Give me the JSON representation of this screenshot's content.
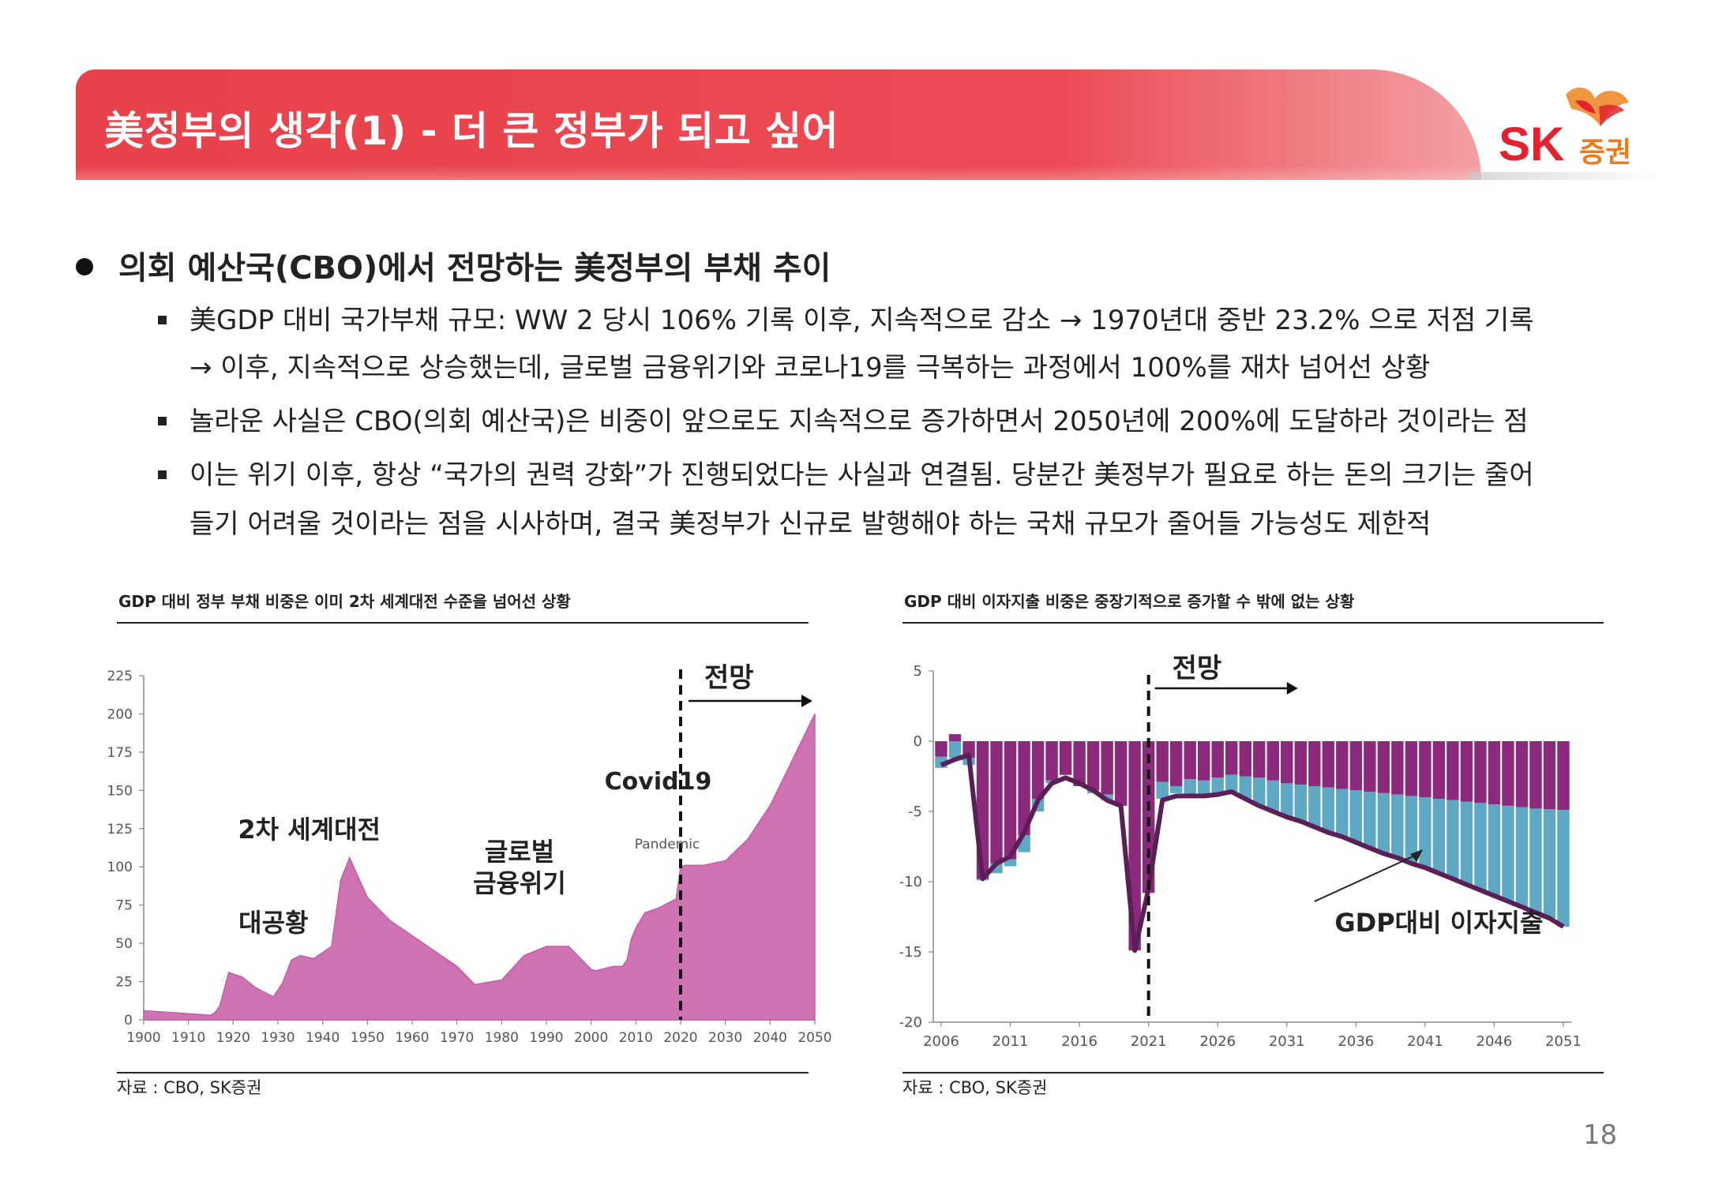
{
  "header": {
    "title": "美정부의 생각(1) - 더 큰 정부가 되고 싶어",
    "logo_main": "SK",
    "logo_sub": "증권",
    "bar_color": "#e8414b"
  },
  "bullet": {
    "heading": "의회 예산국(CBO)에서 전망하는 美정부의 부채 추이",
    "items": [
      "美GDP 대비 국가부채 규모: WW 2 당시 106% 기록 이후, 지속적으로 감소 → 1970년대 중반 23.2% 으로 저점 기록",
      "→ 이후, 지속적으로 상승했는데, 글로벌 금융위기와 코로나19를 극복하는 과정에서 100%를 재차 넘어선 상황",
      "놀라운 사실은 CBO(의회 예산국)은 비중이 앞으로도 지속적으로 증가하면서 2050년에 200%에 도달하라 것이라는 점",
      "이는 위기 이후, 항상 “국가의 권력 강화”가 진행되었다는 사실과 연결됨. 당분간 美정부가 필요로 하는 돈의 크기는 줄어",
      "들기 어려울 것이라는 점을 시사하며, 결국 美정부가 신규로 발행해야 하는 국채 규모가 줄어들 가능성도 제한적"
    ]
  },
  "chart_data": [
    {
      "type": "area",
      "title": "GDP 대비 정부 부채 비중은 이미 2차 세계대전 수준을 넘어선 상황",
      "source": "자료 : CBO, SK증권",
      "color": "#cf72b2",
      "xlim": [
        1900,
        2050
      ],
      "ylim": [
        0,
        225
      ],
      "x_ticks": [
        "1900",
        "1910",
        "1920",
        "1930",
        "1940",
        "1950",
        "1960",
        "1970",
        "1980",
        "1990",
        "2000",
        "2010",
        "2020",
        "2030",
        "2040",
        "2050"
      ],
      "y_ticks": [
        "225",
        "200",
        "175",
        "150",
        "125",
        "100",
        "75",
        "50",
        "25",
        "0"
      ],
      "forecast_line_x": 2020,
      "annotations": {
        "forecast": "전망",
        "covid": "Covid19",
        "pandemic": "Pandemic",
        "ww2": "2차 세계대전",
        "gfc_line1": "글로벌",
        "gfc_line2": "금융위기",
        "depression": "대공황"
      },
      "x": [
        1900,
        1905,
        1910,
        1915,
        1916,
        1917,
        1918,
        1919,
        1920,
        1922,
        1925,
        1929,
        1931,
        1933,
        1935,
        1938,
        1940,
        1942,
        1944,
        1946,
        1948,
        1950,
        1955,
        1960,
        1965,
        1970,
        1974,
        1980,
        1985,
        1990,
        1995,
        2000,
        2001,
        2005,
        2007,
        2008,
        2009,
        2010,
        2012,
        2015,
        2019,
        2020,
        2021,
        2025,
        2030,
        2035,
        2040,
        2045,
        2050
      ],
      "values": [
        6,
        5,
        4,
        3,
        5,
        9,
        20,
        31,
        30,
        28,
        21,
        15,
        24,
        39,
        42,
        40,
        44,
        48,
        91,
        106,
        93,
        80,
        65,
        55,
        45,
        35,
        23,
        26,
        42,
        48,
        48,
        33,
        32,
        35,
        35,
        39,
        53,
        60,
        70,
        73,
        79,
        100,
        101,
        101,
        104,
        118,
        140,
        170,
        200
      ]
    },
    {
      "type": "bar",
      "title": "GDP 대비 이자지출 비중은 중장기적으로 증가할 수 밖에 없는 상황",
      "source": "자료 : CBO, SK증권",
      "series_colors": [
        "#8b2a7a",
        "#5fa8c4"
      ],
      "line_color": "#5a1f57",
      "xlim": [
        2006,
        2051
      ],
      "ylim": [
        -20,
        5
      ],
      "x_ticks": [
        "2006",
        "2011",
        "2016",
        "2021",
        "2026",
        "2031",
        "2036",
        "2041",
        "2046",
        "2051"
      ],
      "y_ticks": [
        "5",
        "0",
        "-5",
        "-10",
        "-15",
        "-20"
      ],
      "forecast_line_x": 2021,
      "annotations": {
        "forecast": "전망",
        "label": "GDP대비 이자지출"
      },
      "x": [
        2006,
        2007,
        2008,
        2009,
        2010,
        2011,
        2012,
        2013,
        2014,
        2015,
        2016,
        2017,
        2018,
        2019,
        2020,
        2021,
        2022,
        2023,
        2024,
        2025,
        2026,
        2027,
        2028,
        2029,
        2030,
        2031,
        2032,
        2033,
        2034,
        2035,
        2036,
        2037,
        2038,
        2039,
        2040,
        2041,
        2042,
        2043,
        2044,
        2045,
        2046,
        2047,
        2048,
        2049,
        2050,
        2051
      ],
      "bar_top": [
        -1.1,
        0.5,
        -1.2,
        -9.8,
        -8.7,
        -8.4,
        -6.7,
        -4.1,
        -2.8,
        -2.4,
        -3.2,
        -3.5,
        -3.8,
        -4.6,
        -14.9,
        -10.8,
        -2.9,
        -3.2,
        -2.7,
        -2.8,
        -2.6,
        -2.4,
        -2.5,
        -2.6,
        -2.8,
        -3.0,
        -3.1,
        -3.2,
        -3.3,
        -3.4,
        -3.5,
        -3.6,
        -3.7,
        -3.8,
        -3.9,
        -4.0,
        -4.1,
        -4.2,
        -4.3,
        -4.4,
        -4.5,
        -4.6,
        -4.7,
        -4.8,
        -4.85,
        -4.9
      ],
      "bar_bottom": [
        -1.9,
        -1.2,
        -1.7,
        -9.9,
        -9.4,
        -8.9,
        -7.9,
        -5.0,
        -3.0,
        -2.4,
        -2.9,
        -3.7,
        -4.2,
        -4.6,
        -14.9,
        -10.5,
        -4.1,
        -3.7,
        -3.9,
        -3.9,
        -3.8,
        -3.6,
        -4.1,
        -4.6,
        -5.0,
        -5.4,
        -5.7,
        -6.1,
        -6.5,
        -6.8,
        -7.2,
        -7.6,
        -8.0,
        -8.3,
        -8.7,
        -9.0,
        -9.4,
        -9.8,
        -10.2,
        -10.6,
        -11.0,
        -11.4,
        -11.8,
        -12.2,
        -12.6,
        -13.2
      ],
      "line": [
        -1.7,
        -1.3,
        -1.0,
        -9.8,
        -8.7,
        -8.2,
        -6.5,
        -4.2,
        -3.0,
        -2.6,
        -3.0,
        -3.5,
        -4.2,
        -4.6,
        -14.9,
        -10.5,
        -4.2,
        -3.9,
        -3.9,
        -3.9,
        -3.8,
        -3.6,
        -4.1,
        -4.6,
        -5.0,
        -5.4,
        -5.7,
        -6.1,
        -6.5,
        -6.8,
        -7.2,
        -7.6,
        -8.0,
        -8.3,
        -8.7,
        -9.0,
        -9.4,
        -9.8,
        -10.2,
        -10.6,
        -11.0,
        -11.4,
        -11.8,
        -12.2,
        -12.6,
        -13.2
      ]
    }
  ],
  "page_number": "18"
}
